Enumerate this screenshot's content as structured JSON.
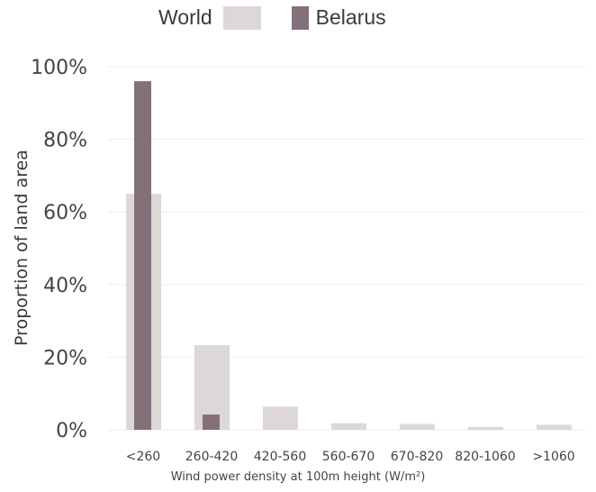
{
  "chart_data": {
    "type": "bar",
    "categories": [
      "<260",
      "260-420",
      "420-560",
      "560-670",
      "670-820",
      "820-1060",
      ">1060"
    ],
    "series": [
      {
        "name": "World",
        "values": [
          65,
          23.3,
          6.4,
          1.8,
          1.6,
          0.8,
          1.4
        ],
        "color": "#ddd7d8"
      },
      {
        "name": "Belarus",
        "values": [
          96,
          4.2,
          0,
          0,
          0,
          0,
          0
        ],
        "color": "#84707a"
      }
    ],
    "y_ticks": [
      "0%",
      "20%",
      "40%",
      "60%",
      "80%",
      "100%"
    ],
    "y_tick_values": [
      0,
      20,
      40,
      60,
      80,
      100
    ],
    "ylim": [
      0,
      100
    ],
    "xlabel": "Wind power density at 100m height (W/m²)",
    "ylabel": "Proportion of land area",
    "grid": true,
    "legend_position": "top-center",
    "colors": {
      "gridline": "#ededed",
      "text": "#444444"
    }
  }
}
